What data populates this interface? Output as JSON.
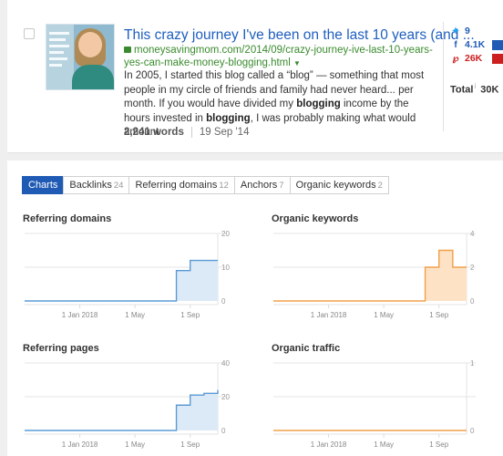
{
  "result": {
    "title": "This crazy journey I've been on the last 10 years (and ...",
    "url": "moneysavingmom.com/2014/09/crazy-journey-ive-last-10-years-yes-can-make-money-blogging.html",
    "snippet": {
      "before": "In 2005, I started this blog called a “blog” — something that most people in my circle of friends and family had never heard... per month. If you would have divided my ",
      "bold1": "blogging",
      "middle": " income by the hours invested in ",
      "bold2": "blogging",
      "after": ", I was probably making what would amount"
    },
    "words": "2,241 words",
    "date": "19 Sep '14"
  },
  "social": {
    "twitter": "9",
    "facebook": "4.1K",
    "pinterest": "26K",
    "total_label": "Total",
    "total_value": "30K",
    "colors": {
      "twitter": "#1da1f2",
      "facebook": "#1f5bb4",
      "pinterest": "#cc1f1f"
    }
  },
  "tabs": [
    {
      "label": "Charts",
      "count": ""
    },
    {
      "label": "Backlinks",
      "count": "24"
    },
    {
      "label": "Referring domains",
      "count": "12"
    },
    {
      "label": "Anchors",
      "count": "7"
    },
    {
      "label": "Organic keywords",
      "count": "2"
    }
  ],
  "chart_data": [
    {
      "type": "area",
      "title": "Referring domains",
      "color": "#5b9bd5",
      "fill": "#dce9f6",
      "yticks": [
        "20",
        "10",
        "0"
      ],
      "ylim": [
        0,
        20
      ],
      "xticks": [
        "1 Jan 2018",
        "1 May",
        "1 Sep"
      ],
      "x": [
        "2017-09",
        "2018-01",
        "2018-05",
        "2018-07",
        "2018-08",
        "2018-09",
        "2018-10",
        "2018-11"
      ],
      "values": [
        0,
        0,
        0,
        0,
        9,
        12,
        12,
        12
      ]
    },
    {
      "type": "area",
      "title": "Organic keywords",
      "color": "#f0a04b",
      "fill": "#fde2c6",
      "yticks": [
        "4",
        "2",
        "0"
      ],
      "ylim": [
        0,
        4
      ],
      "xticks": [
        "1 Jan 2018",
        "1 May",
        "1 Sep"
      ],
      "x": [
        "2017-09",
        "2018-01",
        "2018-05",
        "2018-07",
        "2018-08",
        "2018-09",
        "2018-10",
        "2018-11"
      ],
      "values": [
        0,
        0,
        0,
        0,
        2,
        3,
        2,
        2
      ]
    },
    {
      "type": "area",
      "title": "Referring pages",
      "color": "#5b9bd5",
      "fill": "#dce9f6",
      "yticks": [
        "40",
        "20",
        "0"
      ],
      "ylim": [
        0,
        40
      ],
      "xticks": [
        "1 Jan 2018",
        "1 May",
        "1 Sep"
      ],
      "x": [
        "2017-09",
        "2018-01",
        "2018-05",
        "2018-07",
        "2018-08",
        "2018-09",
        "2018-10",
        "2018-11"
      ],
      "values": [
        0,
        0,
        0,
        0,
        15,
        21,
        22,
        24
      ]
    },
    {
      "type": "area",
      "title": "Organic traffic",
      "color": "#f0a04b",
      "fill": "#fde2c6",
      "yticks": [
        "1",
        "0"
      ],
      "ylim": [
        0,
        1
      ],
      "xticks": [
        "1 Jan 2018",
        "1 May",
        "1 Sep"
      ],
      "x": [
        "2017-09",
        "2018-01",
        "2018-05",
        "2018-07",
        "2018-08",
        "2018-09",
        "2018-10",
        "2018-11"
      ],
      "values": [
        0,
        0,
        0,
        0,
        0,
        0,
        0,
        0
      ]
    }
  ]
}
